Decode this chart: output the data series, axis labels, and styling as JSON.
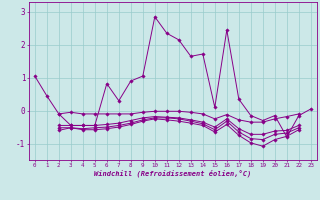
{
  "xlabel": "Windchill (Refroidissement éolien,°C)",
  "xlim": [
    -0.5,
    23.5
  ],
  "ylim": [
    -1.5,
    3.3
  ],
  "yticks": [
    -1,
    0,
    1,
    2,
    3
  ],
  "xticks": [
    0,
    1,
    2,
    3,
    4,
    5,
    6,
    7,
    8,
    9,
    10,
    11,
    12,
    13,
    14,
    15,
    16,
    17,
    18,
    19,
    20,
    21,
    22,
    23
  ],
  "bg_color": "#cce8e8",
  "line_color": "#880088",
  "grid_color": "#99cccc",
  "series": [
    [
      1.05,
      0.45,
      -0.1,
      -0.45,
      -0.45,
      -0.45,
      0.82,
      0.3,
      0.9,
      1.05,
      2.85,
      2.35,
      2.15,
      1.65,
      1.72,
      0.1,
      2.45,
      0.35,
      -0.15,
      -0.3,
      -0.15,
      -0.8,
      -0.15,
      0.05
    ],
    [
      null,
      null,
      -0.1,
      -0.05,
      -0.1,
      -0.1,
      -0.1,
      -0.1,
      -0.1,
      -0.05,
      -0.02,
      -0.02,
      -0.02,
      -0.05,
      -0.1,
      -0.25,
      -0.12,
      -0.28,
      -0.35,
      -0.35,
      -0.25,
      -0.18,
      -0.1,
      null
    ],
    [
      null,
      null,
      -0.45,
      -0.45,
      -0.45,
      -0.45,
      -0.42,
      -0.38,
      -0.3,
      -0.22,
      -0.18,
      -0.2,
      -0.22,
      -0.28,
      -0.35,
      -0.5,
      -0.25,
      -0.55,
      -0.72,
      -0.72,
      -0.62,
      -0.6,
      -0.45,
      null
    ],
    [
      null,
      null,
      -0.52,
      -0.52,
      -0.55,
      -0.52,
      -0.5,
      -0.45,
      -0.38,
      -0.28,
      -0.22,
      -0.22,
      -0.25,
      -0.32,
      -0.4,
      -0.58,
      -0.32,
      -0.65,
      -0.85,
      -0.88,
      -0.72,
      -0.68,
      -0.52,
      null
    ],
    [
      null,
      null,
      -0.6,
      -0.52,
      -0.58,
      -0.58,
      -0.55,
      -0.5,
      -0.42,
      -0.32,
      -0.25,
      -0.28,
      -0.32,
      -0.38,
      -0.45,
      -0.65,
      -0.42,
      -0.75,
      -0.98,
      -1.08,
      -0.88,
      -0.78,
      -0.58,
      null
    ]
  ]
}
